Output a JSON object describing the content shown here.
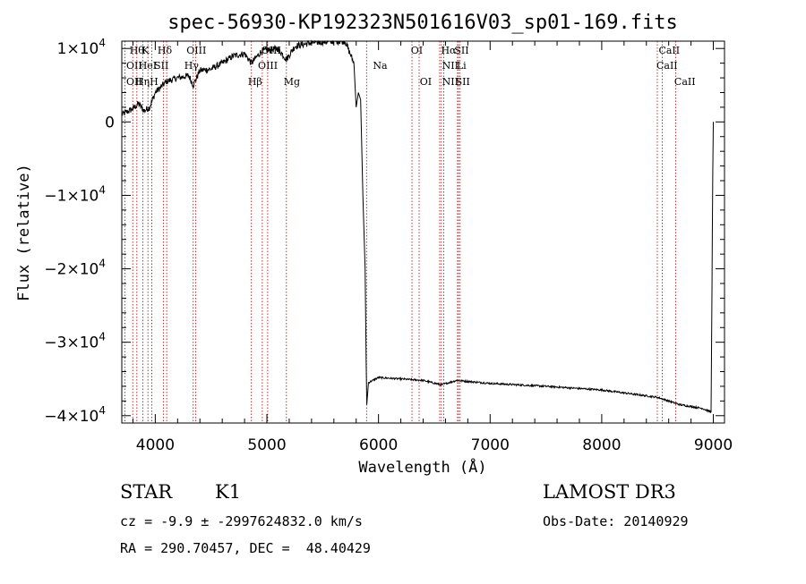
{
  "chart_data": {
    "type": "line",
    "title": "spec-56930-KP192323N501616V03_sp01-169.fits",
    "xlabel": "Wavelength (Å)",
    "ylabel": "Flux (relative)",
    "xlim": [
      3700,
      9100
    ],
    "ylim": [
      -41000,
      11000
    ],
    "x_ticks": [
      {
        "value": 4000,
        "label": "4000"
      },
      {
        "value": 5000,
        "label": "5000"
      },
      {
        "value": 6000,
        "label": "6000"
      },
      {
        "value": 7000,
        "label": "7000"
      },
      {
        "value": 8000,
        "label": "8000"
      },
      {
        "value": 9000,
        "label": "9000"
      }
    ],
    "y_ticks": [
      {
        "value": 10000,
        "mant": "1",
        "label": "1×10",
        "exp": "4"
      },
      {
        "value": 0,
        "mant": "",
        "label": "0",
        "exp": ""
      },
      {
        "value": -10000,
        "mant": "−1",
        "label": "−1×10",
        "exp": "4"
      },
      {
        "value": -20000,
        "mant": "−2",
        "label": "−2×10",
        "exp": "4"
      },
      {
        "value": -30000,
        "mant": "−3",
        "label": "−3×10",
        "exp": "4"
      },
      {
        "value": -40000,
        "mant": "−4",
        "label": "−4×10",
        "exp": "4"
      }
    ],
    "spectrum_anchors": [
      [
        3700,
        1000
      ],
      [
        3800,
        1800
      ],
      [
        3850,
        2500
      ],
      [
        3900,
        1500
      ],
      [
        3950,
        2000
      ],
      [
        4000,
        4000
      ],
      [
        4100,
        5500
      ],
      [
        4200,
        6000
      ],
      [
        4300,
        6300
      ],
      [
        4340,
        5000
      ],
      [
        4400,
        7000
      ],
      [
        4500,
        7200
      ],
      [
        4600,
        8000
      ],
      [
        4700,
        9000
      ],
      [
        4800,
        9300
      ],
      [
        4861,
        8000
      ],
      [
        4950,
        9600
      ],
      [
        5100,
        10000
      ],
      [
        5175,
        8500
      ],
      [
        5250,
        10300
      ],
      [
        5400,
        10800
      ],
      [
        5600,
        11000
      ],
      [
        5700,
        11000
      ],
      [
        5780,
        8000
      ],
      [
        5800,
        2000
      ],
      [
        5820,
        4000
      ],
      [
        5840,
        3000
      ],
      [
        5860,
        -10000
      ],
      [
        5880,
        -20000
      ],
      [
        5890,
        -33000
      ],
      [
        5895,
        -38500
      ],
      [
        5910,
        -35500
      ],
      [
        6000,
        -34800
      ],
      [
        6200,
        -35000
      ],
      [
        6400,
        -35200
      ],
      [
        6563,
        -35800
      ],
      [
        6700,
        -35200
      ],
      [
        7000,
        -35600
      ],
      [
        7500,
        -36000
      ],
      [
        8000,
        -36500
      ],
      [
        8500,
        -37500
      ],
      [
        8700,
        -38500
      ],
      [
        8900,
        -39000
      ],
      [
        8980,
        -39500
      ],
      [
        8995,
        -7000
      ],
      [
        9000,
        0
      ]
    ],
    "emission_lines": [
      {
        "name": "Hθ",
        "wavelength": 3798
      },
      {
        "name": "Hη",
        "wavelength": 3835
      },
      {
        "name": "K",
        "wavelength": 3934
      },
      {
        "name": "H",
        "wavelength": 3968
      },
      {
        "name": "Hδ",
        "wavelength": 4102
      },
      {
        "name": "OII",
        "wavelength": 3727
      },
      {
        "name": "OIII",
        "wavelength": 4363
      },
      {
        "name": "Hγ",
        "wavelength": 4340
      },
      {
        "name": "HeI",
        "wavelength": 3889
      },
      {
        "name": "SII",
        "wavelength": 4072
      },
      {
        "name": "Hβ",
        "wavelength": 4861
      },
      {
        "name": "OIII",
        "wavelength": 4959
      },
      {
        "name": "OIII",
        "wavelength": 5007
      },
      {
        "name": "Mg",
        "wavelength": 5175
      },
      {
        "name": "Na",
        "wavelength": 5893
      },
      {
        "name": "OI",
        "wavelength": 6300
      },
      {
        "name": "OI",
        "wavelength": 6364
      },
      {
        "name": "Hα",
        "wavelength": 6563
      },
      {
        "name": "NII",
        "wavelength": 6548
      },
      {
        "name": "NII",
        "wavelength": 6584
      },
      {
        "name": "SII",
        "wavelength": 6717
      },
      {
        "name": "SII",
        "wavelength": 6731
      },
      {
        "name": "Li",
        "wavelength": 6708
      },
      {
        "name": "CaII",
        "wavelength": 8498
      },
      {
        "name": "CaII",
        "wavelength": 8542
      },
      {
        "name": "CaII",
        "wavelength": 8662
      }
    ],
    "line_labels": [
      {
        "text": "Hθ",
        "wavelength": 3770,
        "row": 0
      },
      {
        "text": "K",
        "wavelength": 3880,
        "row": 0
      },
      {
        "text": "Hδ",
        "wavelength": 4020,
        "row": 0
      },
      {
        "text": "OII",
        "wavelength": 3740,
        "row": 1
      },
      {
        "text": "HeI",
        "wavelength": 3850,
        "row": 1
      },
      {
        "text": "SII",
        "wavelength": 3990,
        "row": 1
      },
      {
        "text": "OII",
        "wavelength": 3740,
        "row": 2
      },
      {
        "text": "Hη",
        "wavelength": 3820,
        "row": 2
      },
      {
        "text": "H",
        "wavelength": 3950,
        "row": 2
      },
      {
        "text": "OIII",
        "wavelength": 4280,
        "row": 0
      },
      {
        "text": "Hγ",
        "wavelength": 4260,
        "row": 1
      },
      {
        "text": "Hβ",
        "wavelength": 4830,
        "row": 3
      },
      {
        "text": "OIII",
        "wavelength": 4950,
        "row": 0
      },
      {
        "text": "OIII",
        "wavelength": 4920,
        "row": 1
      },
      {
        "text": "Mg",
        "wavelength": 5150,
        "row": 3
      },
      {
        "text": "Na",
        "wavelength": 5950,
        "row": 1
      },
      {
        "text": "OI",
        "wavelength": 6290,
        "row": 0
      },
      {
        "text": "OI",
        "wavelength": 6370,
        "row": 2
      },
      {
        "text": "Hα",
        "wavelength": 6560,
        "row": 0
      },
      {
        "text": "SII",
        "wavelength": 6680,
        "row": 0
      },
      {
        "text": "NII",
        "wavelength": 6570,
        "row": 1
      },
      {
        "text": "Li",
        "wavelength": 6700,
        "row": 1
      },
      {
        "text": "NII",
        "wavelength": 6570,
        "row": 2
      },
      {
        "text": "SII",
        "wavelength": 6690,
        "row": 2
      },
      {
        "text": "CaII",
        "wavelength": 8510,
        "row": 0
      },
      {
        "text": "CaII",
        "wavelength": 8490,
        "row": 1
      },
      {
        "text": "CaII",
        "wavelength": 8650,
        "row": 2
      }
    ]
  },
  "info": {
    "object_class": "STAR",
    "subclass": "K1",
    "survey": "LAMOST DR3",
    "velocity": "cz = -9.9 ± -2997624832.0 km/s",
    "obs_date": "Obs-Date: 20140929",
    "coords": "RA = 290.70457, DEC =  48.40429"
  },
  "colors": {
    "spectrum": "#000000",
    "line_markers": "#b00000",
    "axis": "#000000"
  }
}
